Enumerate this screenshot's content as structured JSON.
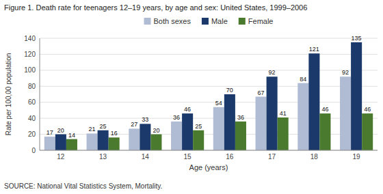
{
  "chart_data": {
    "type": "bar",
    "title": "Figure 1. Death rate for teenagers 12–19 years, by age and sex: United States, 1999–2006",
    "x_label": "Age (years)",
    "y_label": "Rate per 100,00 population",
    "annotations": [
      "SOURCE: National Vital Statistics System, Mortality."
    ],
    "categories": [
      "12",
      "13",
      "14",
      "15",
      "16",
      "17",
      "18",
      "19"
    ],
    "series": [
      {
        "name": "Both sexes",
        "color": "#b0bcd4",
        "values": [
          17,
          21,
          27,
          36,
          54,
          67,
          84,
          92
        ]
      },
      {
        "name": "Male",
        "color": "#1b3a6b",
        "values": [
          20,
          25,
          33,
          46,
          70,
          92,
          121,
          135
        ]
      },
      {
        "name": "Female",
        "color": "#4a7a2e",
        "values": [
          14,
          16,
          20,
          25,
          36,
          41,
          46,
          46
        ]
      }
    ],
    "ylim": [
      0,
      140
    ],
    "yticks": [
      0,
      20,
      40,
      60,
      80,
      100,
      120,
      140
    ],
    "grid": true,
    "legend": "top",
    "data_labels": true
  }
}
